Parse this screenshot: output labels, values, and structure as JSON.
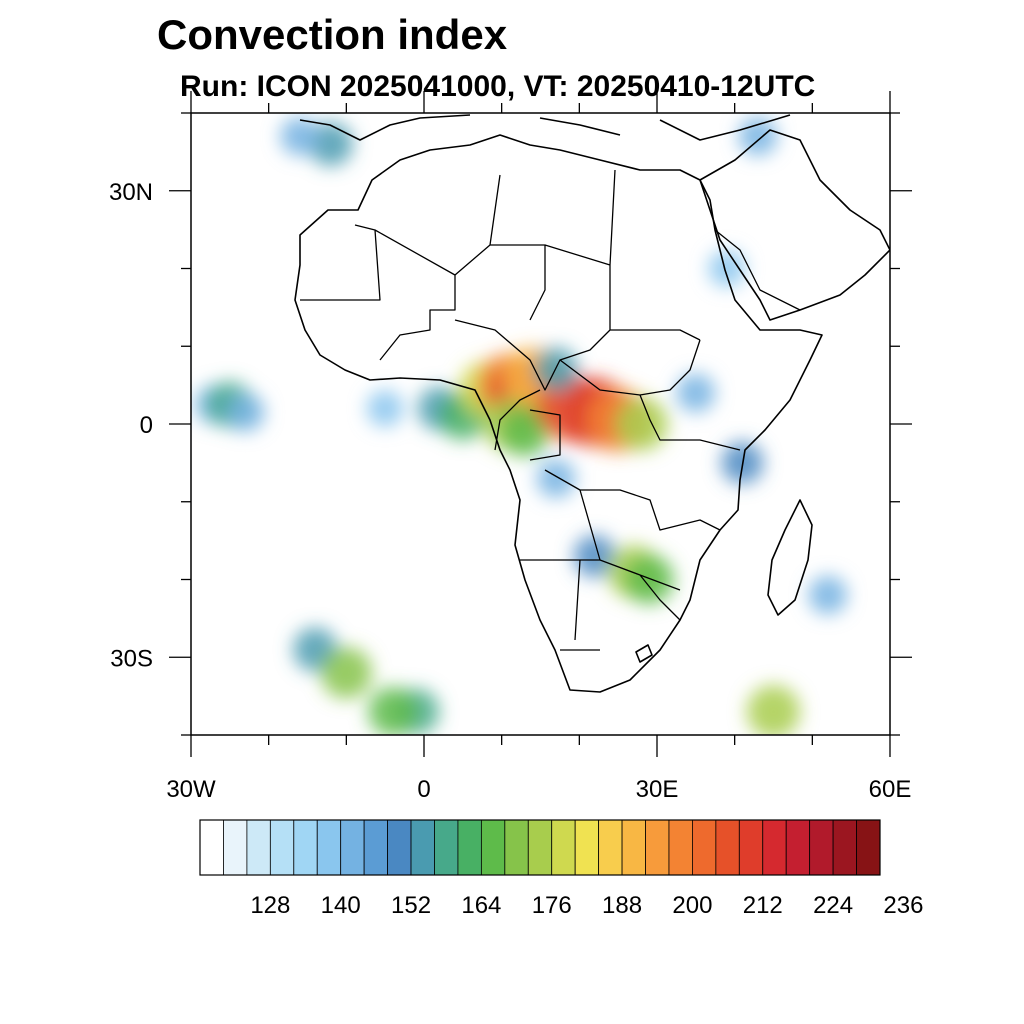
{
  "title": "Convection index",
  "subtitle": "Run: ICON 2025041000,  VT: 20250410-12UTC",
  "map": {
    "lon_range": [
      -30,
      60
    ],
    "lat_range": [
      -40,
      40
    ],
    "lon_ticks": [
      {
        "value": -30,
        "label": "30W"
      },
      {
        "value": 0,
        "label": "0"
      },
      {
        "value": 30,
        "label": "30E"
      },
      {
        "value": 60,
        "label": "60E"
      }
    ],
    "lat_ticks": [
      {
        "value": 30,
        "label": "30N"
      },
      {
        "value": 0,
        "label": "0"
      },
      {
        "value": -30,
        "label": "30S"
      }
    ],
    "cells": [
      {
        "lon": -27,
        "lat": 2.5,
        "level": 6
      },
      {
        "lon": -25,
        "lat": 2.5,
        "level": 10
      },
      {
        "lon": -23,
        "lat": 1.5,
        "level": 6
      },
      {
        "lon": -5,
        "lat": 2,
        "level": 5
      },
      {
        "lon": 2,
        "lat": 2,
        "level": 9
      },
      {
        "lon": 5,
        "lat": 1,
        "level": 11
      },
      {
        "lon": 8,
        "lat": 4.5,
        "level": 15
      },
      {
        "lon": 11,
        "lat": 5,
        "level": 20
      },
      {
        "lon": 13,
        "lat": 4,
        "level": 23
      },
      {
        "lon": 14,
        "lat": 6,
        "level": 18
      },
      {
        "lon": 11,
        "lat": 0,
        "level": 14
      },
      {
        "lon": 13,
        "lat": -1,
        "level": 12
      },
      {
        "lon": 19,
        "lat": 2,
        "level": 22
      },
      {
        "lon": 22,
        "lat": 1.5,
        "level": 23
      },
      {
        "lon": 25,
        "lat": 0.5,
        "level": 20
      },
      {
        "lon": 28,
        "lat": 0,
        "level": 14
      },
      {
        "lon": 17,
        "lat": 7,
        "level": 9
      },
      {
        "lon": 35,
        "lat": 4,
        "level": 6
      },
      {
        "lon": 41,
        "lat": -5,
        "level": 8
      },
      {
        "lon": 22,
        "lat": -17,
        "level": 8
      },
      {
        "lon": 27,
        "lat": -19,
        "level": 14
      },
      {
        "lon": 29,
        "lat": -20,
        "level": 12
      },
      {
        "lon": 17,
        "lat": -7,
        "level": 6
      },
      {
        "lon": -14,
        "lat": -29,
        "level": 9
      },
      {
        "lon": -10,
        "lat": -32,
        "level": 13
      },
      {
        "lon": -1,
        "lat": -37,
        "level": 10
      },
      {
        "lon": -4,
        "lat": -37,
        "level": 12
      },
      {
        "lon": 45,
        "lat": -37,
        "level": 14
      },
      {
        "lon": -12,
        "lat": 36,
        "level": 9
      },
      {
        "lon": -16,
        "lat": 37,
        "level": 6
      },
      {
        "lon": 39,
        "lat": 20,
        "level": 5
      },
      {
        "lon": 43,
        "lat": 37,
        "level": 6
      },
      {
        "lon": 52,
        "lat": -22,
        "level": 6
      }
    ]
  },
  "colorbar": {
    "colors": [
      "#ffffff",
      "#e9f4fb",
      "#cde9f7",
      "#b5e0f6",
      "#a0d6f4",
      "#8ac6ee",
      "#74b2e2",
      "#5b9cd4",
      "#4a88c2",
      "#4a9bb0",
      "#47a98a",
      "#48b064",
      "#5ebb4a",
      "#86c34a",
      "#a8cd4d",
      "#cfd94f",
      "#f0e251",
      "#f8cd4d",
      "#f8b744",
      "#f79b3b",
      "#f38333",
      "#ee6a2d",
      "#e65129",
      "#df3d2b",
      "#d5292f",
      "#c41f30",
      "#b11a2b",
      "#9b1620",
      "#871315"
    ],
    "labels": [
      "128",
      "140",
      "152",
      "164",
      "176",
      "188",
      "200",
      "212",
      "224",
      "236"
    ]
  }
}
